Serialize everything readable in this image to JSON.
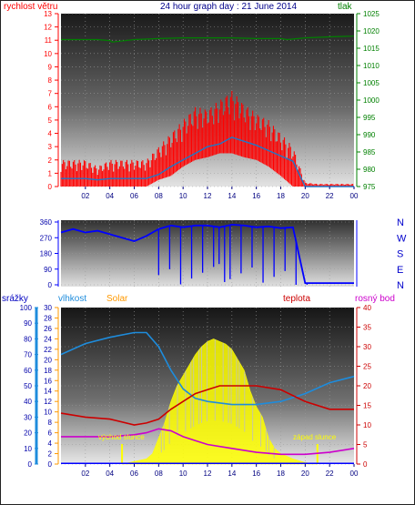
{
  "header": {
    "left_label": "rychlost větru",
    "title": "24 hour graph day : 21 June 2014",
    "right_label": "tlak"
  },
  "bottom_header": {
    "rain_label": "srážky",
    "humidity_label": "vlhkost",
    "solar_label": "Solar",
    "temp_label": "teplota",
    "dew_label": "rosný bod"
  },
  "annotations": {
    "sunrise": "východ slunce",
    "sunset": "západ slunce"
  },
  "colors": {
    "wind": "#ff0000",
    "avg_wind": "#1e78c8",
    "pressure": "#008000",
    "direction": "#0000ff",
    "humidity": "#1e8cdc",
    "temperature": "#cc0000",
    "dewpoint": "#cc00cc",
    "solar": "#ffff00",
    "rain": "#0000ff"
  },
  "chart_data": [
    {
      "type": "line",
      "title": "24 hour graph day : 21 June 2014",
      "x_ticks": [
        "02",
        "04",
        "06",
        "08",
        "10",
        "12",
        "14",
        "16",
        "18",
        "20",
        "22",
        "00"
      ],
      "y_left": {
        "label": "rychlost větru",
        "ticks": [
          0,
          1,
          2,
          3,
          4,
          5,
          6,
          7,
          8,
          9,
          10,
          11,
          12,
          13
        ],
        "ylim": [
          0,
          13
        ]
      },
      "y_right": {
        "label": "tlak",
        "ticks": [
          975,
          980,
          985,
          990,
          995,
          1000,
          1005,
          1010,
          1015,
          1020,
          1025
        ],
        "ylim": [
          975,
          1025
        ]
      },
      "series": [
        {
          "name": "rychlost větru",
          "axis": "left",
          "x": [
            0,
            1,
            2,
            3,
            4,
            5,
            6,
            7,
            8,
            9,
            10,
            11,
            12,
            13,
            14,
            15,
            16,
            17,
            18,
            19,
            20,
            21,
            22,
            23,
            24
          ],
          "min": [
            0,
            0,
            0,
            0,
            0,
            0,
            0,
            0,
            0.5,
            0.8,
            1.5,
            2,
            2.2,
            2.5,
            2.5,
            2.2,
            2,
            1.5,
            0.8,
            0,
            0,
            0,
            0,
            0,
            0
          ],
          "max": [
            2,
            2,
            2,
            1.5,
            2,
            2,
            2,
            2,
            3,
            4,
            5,
            6,
            5.8,
            6.5,
            7.2,
            6.2,
            5.5,
            5,
            4,
            3,
            0.3,
            0.2,
            0.2,
            0.2,
            0.2
          ]
        },
        {
          "name": "",
          "axis": "left",
          "x": [
            0,
            1,
            2,
            3,
            4,
            5,
            6,
            7,
            8,
            9,
            10,
            11,
            12,
            13,
            14,
            15,
            16,
            17,
            18,
            19,
            20,
            21,
            22,
            23,
            24
          ],
          "values": [
            0.6,
            0.6,
            0.6,
            0.5,
            0.6,
            0.6,
            0.6,
            0.6,
            0.9,
            1.5,
            2,
            2.5,
            3,
            3.2,
            3.7,
            3.4,
            3.1,
            2.7,
            2.3,
            1.9,
            0,
            0,
            0,
            0,
            0
          ]
        },
        {
          "name": "tlak",
          "axis": "right",
          "x": [
            0,
            2,
            3,
            4,
            4.2,
            6,
            8,
            10,
            12,
            14,
            16,
            18,
            18.5,
            20,
            22,
            24
          ],
          "values": [
            1017.5,
            1017.5,
            1017.5,
            1017.2,
            1016.8,
            1017.5,
            1017.8,
            1018,
            1018,
            1018,
            1017.8,
            1017.8,
            1017.5,
            1018,
            1018.3,
            1018.5
          ]
        }
      ]
    },
    {
      "type": "line",
      "title": "",
      "x_ticks": [
        "02",
        "04",
        "06",
        "08",
        "10",
        "12",
        "14",
        "16",
        "18",
        "20",
        "22",
        "00"
      ],
      "y_left": {
        "label": "",
        "ticks": [
          0,
          90,
          180,
          270,
          360
        ],
        "ylim": [
          0,
          360
        ]
      },
      "y_right": {
        "label": "",
        "ticks": [
          "N",
          "W",
          "S",
          "E",
          "N"
        ]
      },
      "series": [
        {
          "name": "",
          "axis": "left",
          "x": [
            0,
            1,
            2,
            3,
            4,
            5,
            6,
            7,
            8,
            9,
            10,
            11,
            12,
            13,
            14,
            15,
            16,
            17,
            18,
            19,
            20,
            21,
            22,
            23,
            24
          ],
          "values": [
            300,
            320,
            300,
            310,
            290,
            270,
            250,
            280,
            320,
            340,
            330,
            340,
            340,
            330,
            345,
            340,
            330,
            335,
            325,
            330,
            10,
            10,
            10,
            10,
            10
          ]
        }
      ]
    },
    {
      "type": "area",
      "title": "",
      "x_ticks": [
        "02",
        "04",
        "06",
        "08",
        "10",
        "12",
        "14",
        "16",
        "18",
        "20",
        "22",
        "00"
      ],
      "y_rain": {
        "label": "srážky",
        "ticks": [
          0,
          10,
          20,
          30,
          40,
          50,
          60,
          70,
          80,
          90,
          100
        ],
        "ylim": [
          0,
          100
        ]
      },
      "y_left": {
        "label": "vlhkost",
        "ticks": [
          0,
          2,
          4,
          6,
          8,
          10,
          12,
          14,
          16,
          18,
          20,
          22,
          24,
          26,
          28,
          30
        ],
        "ylim": [
          0,
          30
        ]
      },
      "y_right": {
        "label": "teplota",
        "ticks": [
          0,
          5,
          10,
          15,
          20,
          25,
          30,
          35,
          40
        ],
        "ylim": [
          0,
          40
        ]
      },
      "series": [
        {
          "name": "vlhkost",
          "axis": "humidity_100",
          "x": [
            0,
            2,
            4,
            6,
            7,
            8,
            9,
            10,
            11,
            12,
            14,
            16,
            18,
            20,
            22,
            24
          ],
          "values": [
            70,
            77,
            81,
            84,
            84,
            75,
            60,
            48,
            42,
            40,
            38,
            38,
            40,
            45,
            52,
            56
          ]
        },
        {
          "name": "teplota",
          "axis": "right",
          "x": [
            0,
            2,
            4,
            6,
            7,
            8,
            9,
            10,
            11,
            12,
            13,
            14,
            15,
            16,
            18,
            20,
            22,
            23,
            24
          ],
          "values": [
            13,
            12,
            11.5,
            10,
            10.5,
            11.5,
            14,
            16,
            18,
            19,
            20,
            20,
            20,
            20,
            19,
            16,
            14,
            14,
            14
          ]
        },
        {
          "name": "rosný bod",
          "axis": "right",
          "x": [
            0,
            2,
            4,
            6,
            7,
            8,
            9,
            10,
            11,
            12,
            14,
            16,
            18,
            20,
            22,
            24
          ],
          "values": [
            7,
            7,
            7,
            7.5,
            8,
            9,
            8.5,
            7,
            6,
            5,
            4,
            3,
            2.5,
            2.5,
            3,
            4
          ]
        },
        {
          "name": "Solar",
          "axis": "left",
          "x": [
            5,
            6,
            7,
            7.5,
            8,
            8.5,
            9,
            9.5,
            10,
            10.5,
            11,
            11.5,
            12,
            12.5,
            13,
            13.5,
            14,
            14.5,
            15,
            15.5,
            16,
            16.5,
            17,
            17.5,
            18,
            19,
            20,
            21
          ],
          "values": [
            0,
            0.5,
            1,
            2,
            5,
            8,
            12,
            15,
            17,
            19,
            21,
            22.5,
            23.5,
            24,
            23.5,
            23,
            22,
            20,
            18,
            14,
            11,
            9,
            5,
            3,
            2,
            1,
            0.3,
            0
          ]
        }
      ]
    }
  ]
}
